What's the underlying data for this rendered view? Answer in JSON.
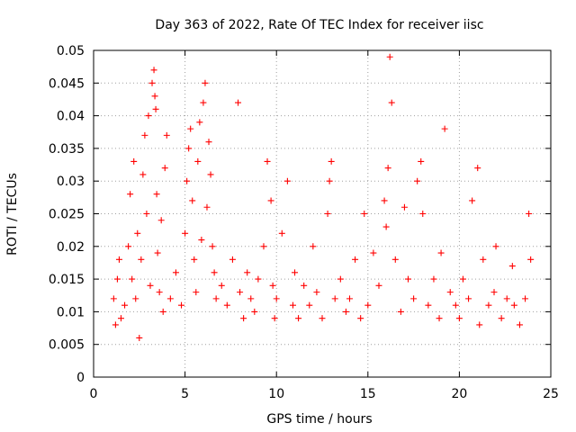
{
  "chart_data": {
    "type": "scatter",
    "title": "Day 363 of 2022, Rate Of TEC Index for receiver iisc",
    "xlabel": "GPS time / hours",
    "ylabel": "ROTI / TECUs",
    "xlim": [
      0,
      25
    ],
    "ylim": [
      0,
      0.05
    ],
    "x_ticks": [
      0,
      5,
      10,
      15,
      20,
      25
    ],
    "x_tick_labels": [
      "0",
      "5",
      "10",
      "15",
      "20",
      "25"
    ],
    "y_ticks": [
      0,
      0.005,
      0.01,
      0.015,
      0.02,
      0.025,
      0.03,
      0.035,
      0.04,
      0.045,
      0.05
    ],
    "y_tick_labels": [
      "0",
      "0.005",
      "0.01",
      "0.015",
      "0.02",
      "0.025",
      "0.03",
      "0.035",
      "0.04",
      "0.045",
      "0.05"
    ],
    "grid": true,
    "marker": "+",
    "color": "#ff0000",
    "series": [
      {
        "name": "ROTI",
        "x": [
          1.1,
          1.2,
          1.3,
          1.4,
          1.5,
          1.7,
          1.9,
          2.0,
          2.1,
          2.2,
          2.3,
          2.4,
          2.5,
          2.6,
          2.7,
          2.8,
          2.9,
          3.0,
          3.1,
          3.2,
          3.3,
          3.35,
          3.4,
          3.45,
          3.5,
          3.6,
          3.7,
          3.8,
          3.9,
          4.0,
          4.2,
          4.5,
          4.8,
          5.0,
          5.1,
          5.2,
          5.3,
          5.4,
          5.5,
          5.6,
          5.7,
          5.8,
          5.9,
          6.0,
          6.1,
          6.2,
          6.3,
          6.4,
          6.5,
          6.6,
          6.7,
          7.0,
          7.3,
          7.6,
          7.9,
          8.0,
          8.2,
          8.4,
          8.6,
          8.8,
          9.0,
          9.3,
          9.5,
          9.7,
          9.8,
          9.9,
          10.0,
          10.3,
          10.6,
          10.9,
          11.0,
          11.2,
          11.5,
          11.8,
          12.0,
          12.2,
          12.5,
          12.8,
          12.9,
          13.0,
          13.2,
          13.5,
          13.8,
          14.0,
          14.3,
          14.6,
          14.8,
          15.0,
          15.3,
          15.6,
          15.9,
          16.0,
          16.1,
          16.2,
          16.3,
          16.5,
          16.8,
          17.0,
          17.2,
          17.5,
          17.7,
          17.9,
          18.0,
          18.3,
          18.6,
          18.9,
          19.0,
          19.2,
          19.5,
          19.8,
          20.0,
          20.2,
          20.5,
          20.7,
          21.0,
          21.1,
          21.3,
          21.6,
          21.9,
          22.0,
          22.3,
          22.6,
          22.9,
          23.0,
          23.3,
          23.6,
          23.8,
          23.9
        ],
        "y": [
          0.012,
          0.008,
          0.015,
          0.018,
          0.009,
          0.011,
          0.02,
          0.028,
          0.015,
          0.033,
          0.012,
          0.022,
          0.006,
          0.018,
          0.031,
          0.037,
          0.025,
          0.04,
          0.014,
          0.045,
          0.047,
          0.043,
          0.041,
          0.028,
          0.019,
          0.013,
          0.024,
          0.01,
          0.032,
          0.037,
          0.012,
          0.016,
          0.011,
          0.022,
          0.03,
          0.035,
          0.038,
          0.027,
          0.018,
          0.013,
          0.033,
          0.039,
          0.021,
          0.042,
          0.045,
          0.026,
          0.036,
          0.031,
          0.02,
          0.016,
          0.012,
          0.014,
          0.011,
          0.018,
          0.042,
          0.013,
          0.009,
          0.016,
          0.012,
          0.01,
          0.015,
          0.02,
          0.033,
          0.027,
          0.014,
          0.009,
          0.012,
          0.022,
          0.03,
          0.011,
          0.016,
          0.009,
          0.014,
          0.011,
          0.02,
          0.013,
          0.009,
          0.025,
          0.03,
          0.033,
          0.012,
          0.015,
          0.01,
          0.012,
          0.018,
          0.009,
          0.025,
          0.011,
          0.019,
          0.014,
          0.027,
          0.023,
          0.032,
          0.049,
          0.042,
          0.018,
          0.01,
          0.026,
          0.015,
          0.012,
          0.03,
          0.033,
          0.025,
          0.011,
          0.015,
          0.009,
          0.019,
          0.038,
          0.013,
          0.011,
          0.009,
          0.015,
          0.012,
          0.027,
          0.032,
          0.008,
          0.018,
          0.011,
          0.013,
          0.02,
          0.009,
          0.012,
          0.017,
          0.011,
          0.008,
          0.012,
          0.025,
          0.018
        ]
      }
    ]
  }
}
